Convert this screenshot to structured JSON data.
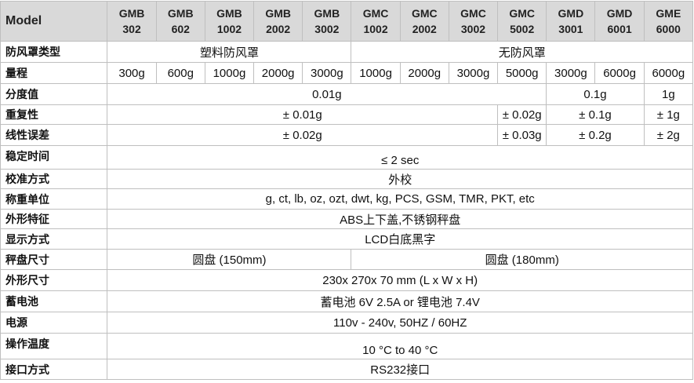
{
  "table": {
    "header": [
      "Model",
      "GMB 302",
      "GMB 602",
      "GMB 1002",
      "GMB 2002",
      "GMB 3002",
      "GMC 1002",
      "GMC 2002",
      "GMC 3002",
      "GMC 5002",
      "GMD 3001",
      "GMD 6001",
      "GME 6000"
    ],
    "rows": [
      {
        "label": "防风罩类型",
        "cells": [
          "塑料防风罩",
          "无防风罩"
        ]
      },
      {
        "label": "量程",
        "cells": [
          "300g",
          "600g",
          "1000g",
          "2000g",
          "3000g",
          "1000g",
          "2000g",
          "3000g",
          "5000g",
          "3000g",
          "6000g",
          "6000g"
        ]
      },
      {
        "label": "分度值",
        "cells": [
          "0.01g",
          "0.1g",
          "1g"
        ]
      },
      {
        "label": "重复性",
        "cells": [
          "± 0.01g",
          "± 0.02g",
          "± 0.1g",
          "± 1g"
        ]
      },
      {
        "label": "线性误差",
        "cells": [
          "± 0.02g",
          "± 0.03g",
          "± 0.2g",
          "± 2g"
        ]
      },
      {
        "label": "稳定时间",
        "cells": [
          "≤ 2 sec"
        ]
      },
      {
        "label": "校准方式",
        "cells": [
          "外校"
        ]
      },
      {
        "label": "称重单位",
        "cells": [
          "g, ct, lb, oz, ozt, dwt, kg, PCS, GSM, TMR, PKT, etc"
        ]
      },
      {
        "label": "外形特征",
        "cells": [
          "ABS上下盖,不锈钢秤盘"
        ]
      },
      {
        "label": "显示方式",
        "cells": [
          "LCD白底黑字"
        ]
      },
      {
        "label": "秤盘尺寸",
        "cells": [
          "圆盘 (150mm)",
          "圆盘 (180mm)"
        ]
      },
      {
        "label": "外形尺寸",
        "cells": [
          "230x 270x 70 mm (L x W x H)"
        ]
      },
      {
        "label": "蓄电池",
        "cells": [
          "蓄电池 6V 2.5A or 锂电池 7.4V"
        ]
      },
      {
        "label": "电源",
        "cells": [
          "110v - 240v, 50HZ / 60HZ"
        ]
      },
      {
        "label": "操作温度",
        "cells": [
          "10 °C to 40 °C"
        ]
      },
      {
        "label": "接口方式",
        "cells": [
          "RS232接口"
        ]
      }
    ]
  }
}
